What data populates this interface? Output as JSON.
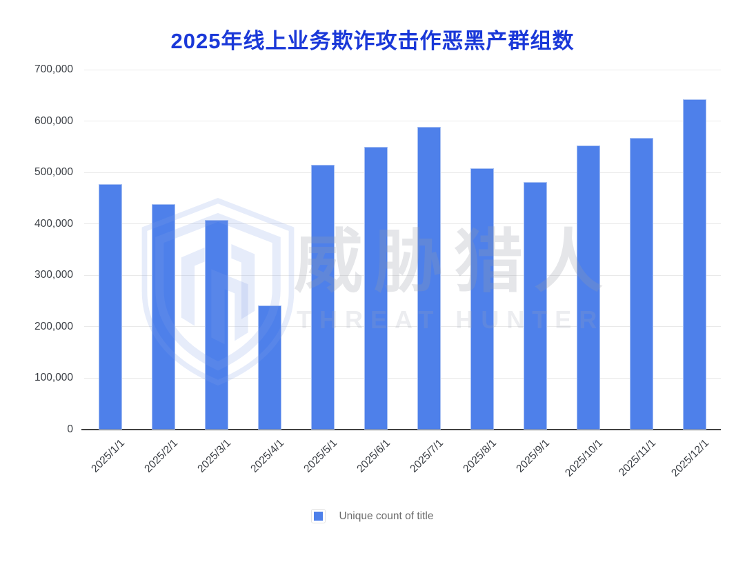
{
  "chart_data": {
    "type": "bar",
    "title": "2025年线上业务欺诈攻击作恶黑产群组数",
    "categories": [
      "2025/1/1",
      "2025/2/1",
      "2025/3/1",
      "2025/4/1",
      "2025/5/1",
      "2025/6/1",
      "2025/7/1",
      "2025/8/1",
      "2025/9/1",
      "2025/10/1",
      "2025/11/1",
      "2025/12/1"
    ],
    "values": [
      478000,
      439000,
      407000,
      242000,
      515000,
      550000,
      589000,
      508000,
      481000,
      552000,
      567000,
      642000
    ],
    "xlabel": "",
    "ylabel": "",
    "ylim": [
      0,
      700000
    ],
    "y_tick_step": 100000,
    "y_tick_labels": [
      "0",
      "100,000",
      "200,000",
      "300,000",
      "400,000",
      "500,000",
      "600,000",
      "700,000"
    ],
    "grid": true,
    "legend_position": "bottom",
    "series_name": "Unique count of title",
    "bar_color": "#4e80ea",
    "title_color": "#1a38d8"
  },
  "legend": {
    "label": "Unique count of title",
    "swatch_color": "#4e80ea"
  },
  "watermark": {
    "cn": "威胁猎人",
    "en": "THREAT HUNTER",
    "logo": "threat-hunter-shield"
  },
  "colors": {
    "bar": "#4e80ea",
    "title": "#1a38d8",
    "grid": "#e9e9e9",
    "axis_line": "#424242",
    "tick_text": "#3a3e44",
    "legend_text": "#6b6b6b"
  }
}
